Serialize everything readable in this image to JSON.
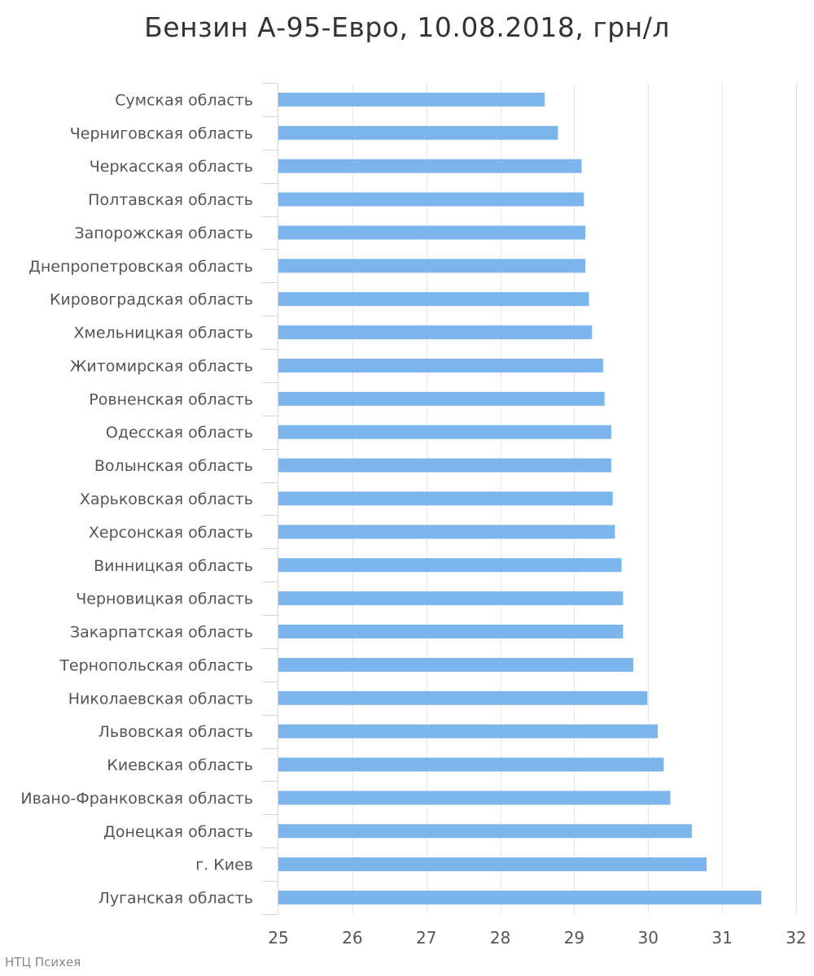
{
  "chart_data": {
    "type": "bar",
    "orientation": "horizontal",
    "title": "Бензин А-95-Евро, 10.08.2018, грн/л",
    "xlabel": "",
    "ylabel": "",
    "xlim": [
      25,
      32
    ],
    "ticks": [
      "25",
      "26",
      "27",
      "28",
      "29",
      "30",
      "31",
      "32"
    ],
    "grid": true,
    "bar_color": "#7cb5ec",
    "categories": [
      "Сумская область",
      "Черниговская область",
      "Черкасская область",
      "Полтавская область",
      "Запорожская область",
      "Днепропетровская область",
      "Кировоградская область",
      "Хмельницкая область",
      "Житомирская область",
      "Ровненская область",
      "Одесская область",
      "Волынская область",
      "Харьковская область",
      "Херсонская область",
      "Винницкая область",
      "Черновицкая область",
      "Закарпатская область",
      "Тернопольская область",
      "Николаевская область",
      "Львовская область",
      "Киевская область",
      "Ивано-Франковская область",
      "Донецкая область",
      "г. Киев",
      "Луганская область"
    ],
    "values": [
      28.6,
      28.78,
      29.1,
      29.13,
      29.15,
      29.15,
      29.2,
      29.24,
      29.39,
      29.41,
      29.5,
      29.5,
      29.52,
      29.55,
      29.64,
      29.66,
      29.66,
      29.8,
      29.99,
      30.13,
      30.21,
      30.3,
      30.59,
      30.79,
      31.53
    ]
  },
  "credit": "НТЦ Психея"
}
